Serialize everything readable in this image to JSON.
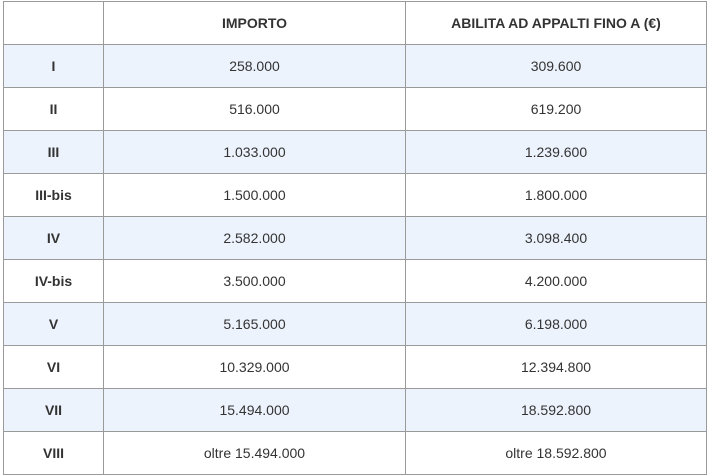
{
  "table": {
    "header": [
      "IMPORTO",
      "ABILITA AD APPALTI FINO A (€)"
    ],
    "rows": [
      [
        "I",
        "258.000",
        "309.600"
      ],
      [
        "II",
        "516.000",
        "619.200"
      ],
      [
        "III",
        "1.033.000",
        "1.239.600"
      ],
      [
        "III-bis",
        "1.500.000",
        "1.800.000"
      ],
      [
        "IV",
        "2.582.000",
        "3.098.400"
      ],
      [
        "IV-bis",
        "3.500.000",
        "4.200.000"
      ],
      [
        "V",
        "5.165.000",
        "6.198.000"
      ],
      [
        "VI",
        "10.329.000",
        "12.394.800"
      ],
      [
        "VII",
        "15.494.000",
        "18.592.800"
      ],
      [
        "VIII",
        "oltre 15.494.000",
        "oltre 18.592.800"
      ]
    ]
  }
}
